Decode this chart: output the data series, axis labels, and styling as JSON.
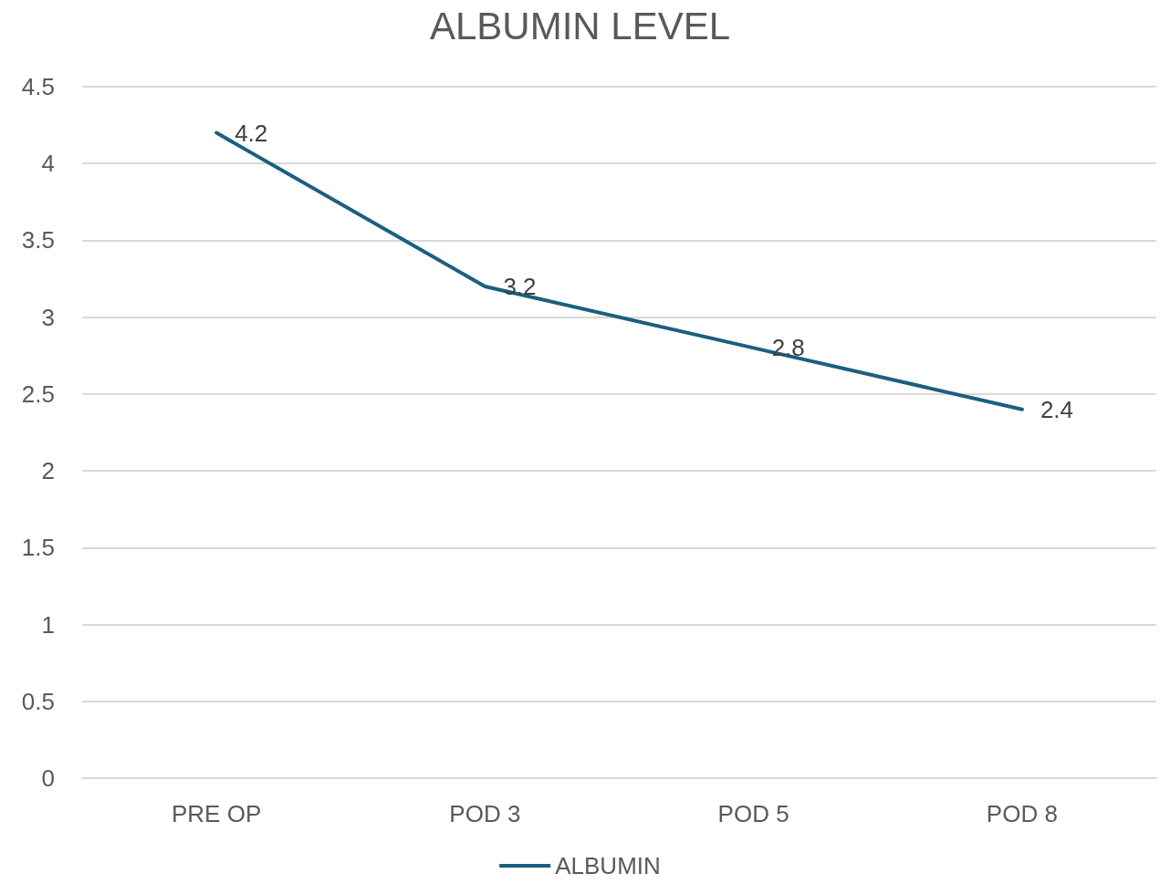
{
  "chart_data": {
    "type": "line",
    "title": "ALBUMIN LEVEL",
    "categories": [
      "PRE OP",
      "POD 3",
      "POD 5",
      "POD 8"
    ],
    "series": [
      {
        "name": "ALBUMIN",
        "color": "#1b5f80",
        "values": [
          4.2,
          3.2,
          2.8,
          2.4
        ]
      }
    ],
    "ylim": [
      0,
      4.5
    ],
    "yticks": [
      0,
      0.5,
      1,
      1.5,
      2,
      2.5,
      3,
      3.5,
      4,
      4.5
    ],
    "grid": "y",
    "legend": "bottom",
    "marker": "none",
    "line_style": "solid",
    "data_labels": true
  }
}
